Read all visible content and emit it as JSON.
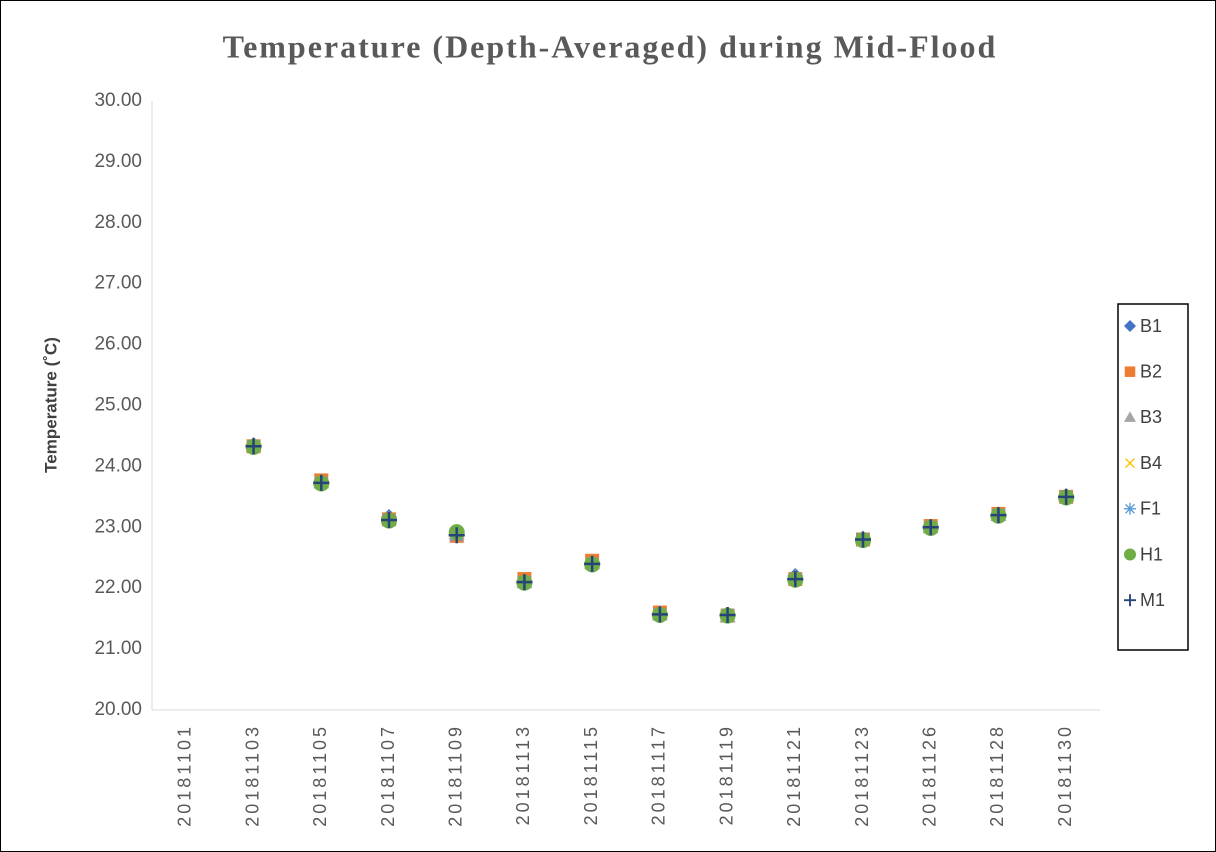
{
  "chart_data": {
    "type": "scatter",
    "title": "Temperature (Depth-Averaged) during Mid-Flood",
    "y_label": "Temperature (˚C)",
    "categories": [
      "20181101",
      "20181103",
      "20181105",
      "20181107",
      "20181109",
      "20181113",
      "20181115",
      "20181117",
      "20181119",
      "20181121",
      "20181123",
      "20181126",
      "20181128",
      "20181130"
    ],
    "series": [
      {
        "name": "B1",
        "color": "#4472c4",
        "marker": "diamond",
        "values": [
          null,
          24.35,
          23.75,
          23.17,
          22.88,
          22.12,
          22.42,
          21.58,
          21.56,
          22.2,
          22.81,
          23.01,
          23.21,
          23.51
        ]
      },
      {
        "name": "B2",
        "color": "#ed7d31",
        "marker": "square",
        "values": [
          null,
          24.33,
          23.77,
          23.13,
          22.86,
          22.15,
          22.45,
          21.6,
          21.55,
          22.15,
          22.8,
          23.02,
          23.22,
          23.5
        ]
      },
      {
        "name": "B3",
        "color": "#a5a5a5",
        "marker": "triangle",
        "values": [
          null,
          24.34,
          23.74,
          23.14,
          22.9,
          22.1,
          22.41,
          21.57,
          21.54,
          22.18,
          22.82,
          23.0,
          23.2,
          23.52
        ]
      },
      {
        "name": "B4",
        "color": "#ffc000",
        "marker": "x",
        "values": [
          null,
          24.33,
          23.73,
          23.12,
          22.87,
          22.1,
          22.4,
          21.57,
          21.56,
          22.15,
          22.8,
          23.0,
          23.2,
          23.5
        ]
      },
      {
        "name": "F1",
        "color": "#5b9bd5",
        "marker": "asterisk",
        "values": [
          null,
          24.33,
          23.73,
          23.12,
          22.87,
          22.1,
          22.4,
          21.57,
          21.56,
          22.15,
          22.8,
          23.0,
          23.2,
          23.5
        ]
      },
      {
        "name": "H1",
        "color": "#70ad47",
        "marker": "circle",
        "values": [
          null,
          24.32,
          23.72,
          23.11,
          22.92,
          22.09,
          22.39,
          21.56,
          21.55,
          22.14,
          22.79,
          22.99,
          23.19,
          23.49
        ]
      },
      {
        "name": "M1",
        "color": "#264478",
        "marker": "plus",
        "values": [
          null,
          24.33,
          23.73,
          23.12,
          22.87,
          22.1,
          22.4,
          21.57,
          21.56,
          22.15,
          22.8,
          23.0,
          23.2,
          23.5
        ]
      }
    ],
    "ylim": [
      20,
      30
    ],
    "yticks": [
      {
        "value": 20,
        "label": "20.00"
      },
      {
        "value": 21,
        "label": "21.00"
      },
      {
        "value": 22,
        "label": "22.00"
      },
      {
        "value": 23,
        "label": "23.00"
      },
      {
        "value": 24,
        "label": "24.00"
      },
      {
        "value": 25,
        "label": "25.00"
      },
      {
        "value": 26,
        "label": "26.00"
      },
      {
        "value": 27,
        "label": "27.00"
      },
      {
        "value": 28,
        "label": "28.00"
      },
      {
        "value": 29,
        "label": "29.00"
      },
      {
        "value": 30,
        "label": "30.00"
      }
    ],
    "grid": false,
    "legend": "right"
  }
}
